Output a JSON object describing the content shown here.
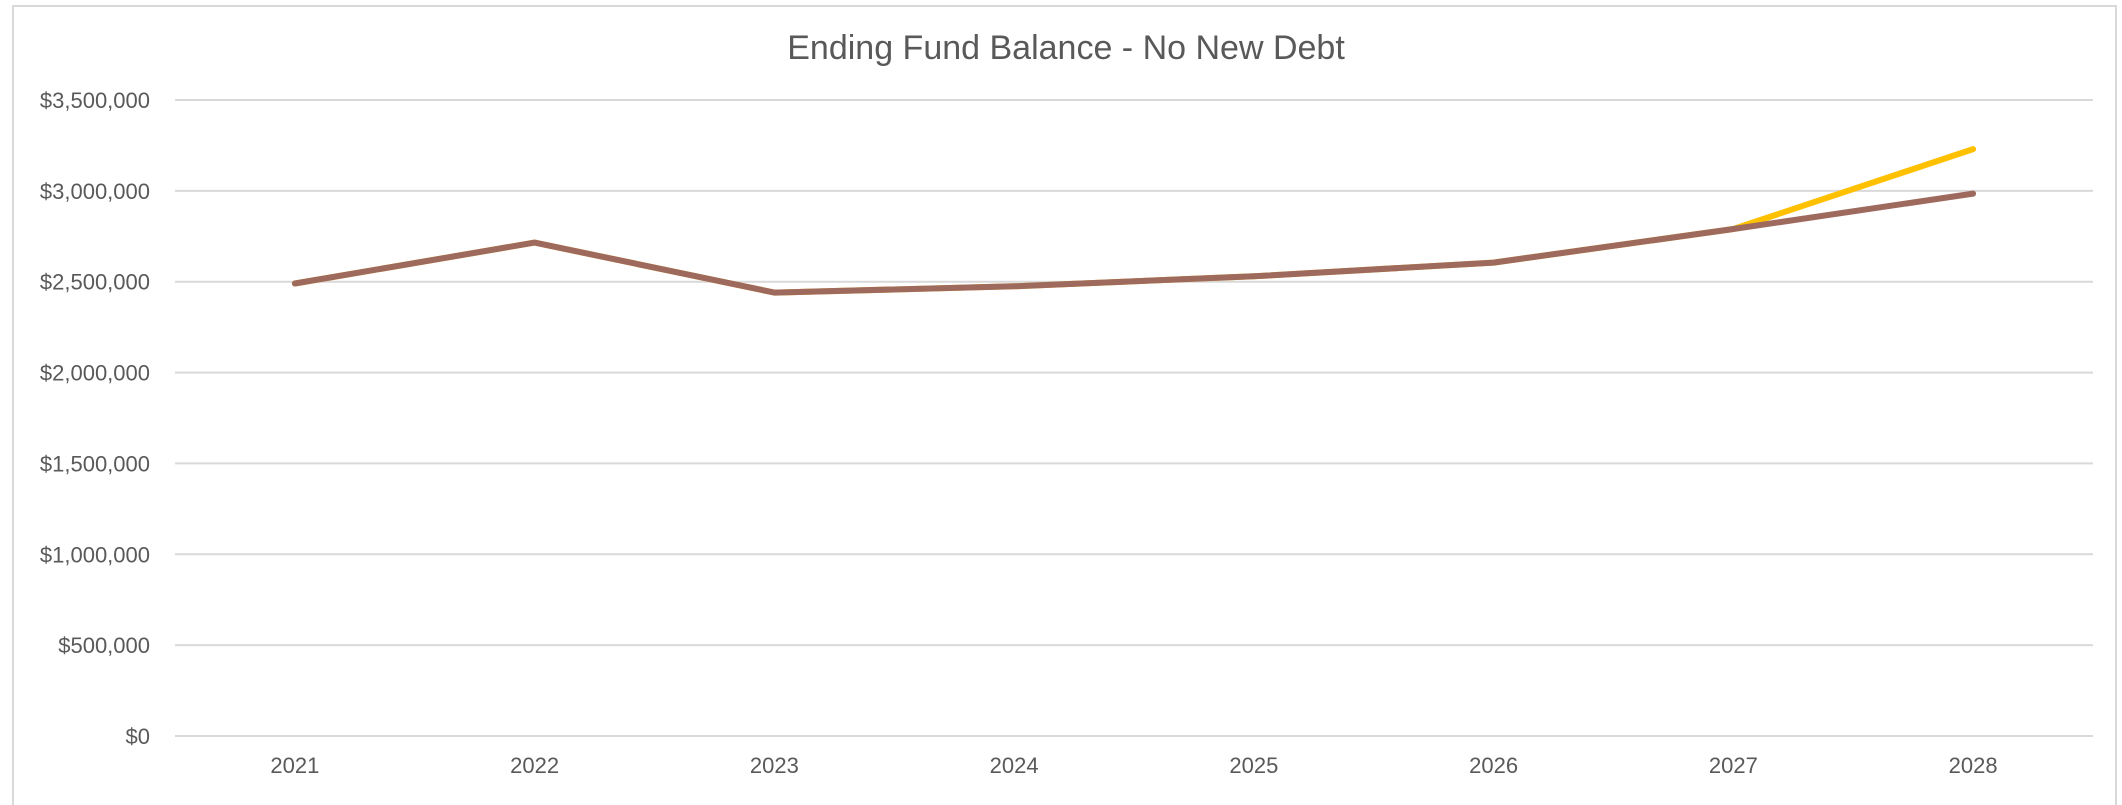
{
  "chart_data": {
    "type": "line",
    "title": "Ending Fund Balance - No New Debt",
    "xlabel": "",
    "ylabel": "",
    "categories": [
      "2021",
      "2022",
      "2023",
      "2024",
      "2025",
      "2026",
      "2027",
      "2028"
    ],
    "ylim": [
      0,
      3500000
    ],
    "yticks": [
      0,
      500000,
      1000000,
      1500000,
      2000000,
      2500000,
      3000000,
      3500000
    ],
    "ytick_labels": [
      "$0",
      "$500,000",
      "$1,000,000",
      "$1,500,000",
      "$2,000,000",
      "$2,500,000",
      "$3,000,000",
      "$3,500,000"
    ],
    "grid": true,
    "legend": "none",
    "series": [
      {
        "color": "#FFC000",
        "values": [
          2490000,
          2715000,
          2440000,
          2475000,
          2530000,
          2605000,
          2790000,
          3230000
        ]
      },
      {
        "color": "#9E6A5E",
        "values": [
          2490000,
          2715000,
          2440000,
          2475000,
          2530000,
          2605000,
          2790000,
          2985000
        ]
      }
    ]
  }
}
